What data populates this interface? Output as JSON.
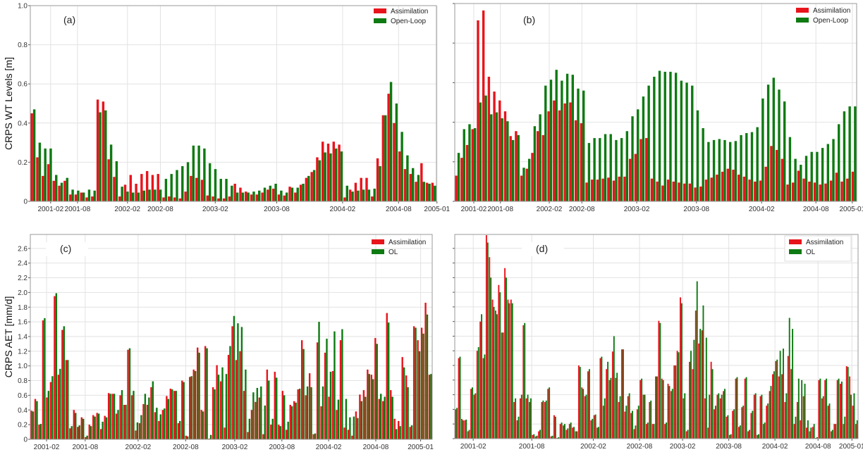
{
  "colors": {
    "assimilation": "#e8141c",
    "openloop": "#0e7a12",
    "grid": "#e2e2e2",
    "frame": "#9a9a9a"
  },
  "chart_data": [
    {
      "id": "a",
      "panel_label": "(a)",
      "type": "bar",
      "ylabel": "CRPS WT Levels [m]",
      "ylim": [
        0,
        1.0
      ],
      "yticks": [
        0,
        0.2,
        0.4,
        0.6,
        0.8,
        1.0
      ],
      "ytick_labels": [
        "0",
        "0.2",
        "0.4",
        "0.6",
        "0.8",
        "1.0"
      ],
      "xticks": [
        {
          "index": 3.2,
          "label": "2001-02"
        },
        {
          "index": 8.1,
          "label": "2001-08"
        },
        {
          "index": 17.2,
          "label": "2002-02"
        },
        {
          "index": 23.2,
          "label": "2002-08"
        },
        {
          "index": 33.2,
          "label": "2003-02"
        },
        {
          "index": 44.4,
          "label": "2003-08"
        },
        {
          "index": 56.4,
          "label": "2004-02"
        },
        {
          "index": 66.6,
          "label": "2004-08"
        },
        {
          "index": 73.6,
          "label": "2005-01"
        }
      ],
      "legend_position": "top-right",
      "series": [
        {
          "name": "Assimilation",
          "values": [
            0.45,
            0.225,
            0.13,
            0.19,
            0.105,
            0.08,
            0.105,
            0.035,
            0.035,
            0.045,
            0.02,
            0.025,
            0.52,
            0.51,
            0.215,
            0.125,
            0.025,
            0.085,
            0.135,
            0.09,
            0.14,
            0.155,
            0.135,
            0.14,
            0.02,
            0.025,
            0.02,
            0.015,
            0.05,
            0.13,
            0.12,
            0.11,
            0.03,
            0.025,
            0.015,
            0.015,
            0.025,
            0.09,
            0.07,
            0.05,
            0.035,
            0.035,
            0.045,
            0.06,
            0.065,
            0.035,
            0.03,
            0.075,
            0.045,
            0.085,
            0.12,
            0.15,
            0.225,
            0.305,
            0.295,
            0.305,
            0.29,
            0.02,
            0.06,
            0.095,
            0.12,
            0.12,
            0.025,
            0.22,
            0.44,
            0.55,
            0.4,
            0.255,
            0.165,
            0.14,
            0.1,
            0.195,
            0.095,
            0.095
          ]
        },
        {
          "name": "Open-Loop",
          "values": [
            0.47,
            0.3,
            0.27,
            0.27,
            0.135,
            0.095,
            0.12,
            0.06,
            0.055,
            0.045,
            0.06,
            0.055,
            0.455,
            0.465,
            0.29,
            0.205,
            0.075,
            0.05,
            0.045,
            0.045,
            0.055,
            0.06,
            0.06,
            0.06,
            0.115,
            0.14,
            0.16,
            0.18,
            0.2,
            0.285,
            0.285,
            0.27,
            0.195,
            0.165,
            0.115,
            0.115,
            0.08,
            0.045,
            0.045,
            0.045,
            0.05,
            0.055,
            0.07,
            0.08,
            0.09,
            0.055,
            0.045,
            0.07,
            0.07,
            0.09,
            0.13,
            0.16,
            0.21,
            0.25,
            0.245,
            0.27,
            0.255,
            0.08,
            0.05,
            0.055,
            0.06,
            0.06,
            0.065,
            0.18,
            0.44,
            0.61,
            0.5,
            0.355,
            0.235,
            0.17,
            0.135,
            0.1,
            0.09,
            0.08
          ]
        }
      ]
    },
    {
      "id": "b",
      "panel_label": "(b)",
      "type": "bar",
      "ylabel": "",
      "ylim": [
        0,
        1.0
      ],
      "yticks": [
        0,
        0.2,
        0.4,
        0.6,
        0.8,
        1.0
      ],
      "ytick_labels": [],
      "xticks": [
        {
          "index": 3.0,
          "label": "2001-02"
        },
        {
          "index": 7.9,
          "label": "2001-08"
        },
        {
          "index": 16.9,
          "label": "2002-02"
        },
        {
          "index": 22.9,
          "label": "2002-08"
        },
        {
          "index": 33.0,
          "label": "2003-02"
        },
        {
          "index": 44.0,
          "label": "2003-08"
        },
        {
          "index": 56.0,
          "label": "2004-02"
        },
        {
          "index": 66.0,
          "label": "2004-08"
        },
        {
          "index": 72.7,
          "label": "2005-01"
        }
      ],
      "legend_position": "top-right",
      "series": [
        {
          "name": "Assimilation",
          "values": [
            0.13,
            0.22,
            0.285,
            0.365,
            0.915,
            0.965,
            0.63,
            0.555,
            0.51,
            0.455,
            0.33,
            0.355,
            0.13,
            0.165,
            0.245,
            0.355,
            0.335,
            0.455,
            0.51,
            0.46,
            0.495,
            0.5,
            0.41,
            0.395,
            0.095,
            0.11,
            0.11,
            0.115,
            0.12,
            0.105,
            0.125,
            0.125,
            0.215,
            0.24,
            0.315,
            0.32,
            0.115,
            0.1,
            0.08,
            0.11,
            0.1,
            0.095,
            0.09,
            0.09,
            0.07,
            0.075,
            0.11,
            0.12,
            0.135,
            0.15,
            0.165,
            0.16,
            0.135,
            0.125,
            0.11,
            0.1,
            0.105,
            0.175,
            0.28,
            0.26,
            0.215,
            0.085,
            0.095,
            0.155,
            0.115,
            0.1,
            0.095,
            0.085,
            0.09,
            0.105,
            0.145,
            0.1,
            0.115,
            0.15
          ]
        },
        {
          "name": "Open-Loop",
          "values": [
            0.245,
            0.365,
            0.39,
            0.37,
            0.5,
            0.535,
            0.44,
            0.45,
            0.42,
            0.405,
            0.31,
            0.335,
            0.17,
            0.215,
            0.38,
            0.44,
            0.585,
            0.615,
            0.665,
            0.61,
            0.645,
            0.64,
            0.57,
            0.56,
            0.295,
            0.32,
            0.32,
            0.34,
            0.34,
            0.31,
            0.32,
            0.355,
            0.43,
            0.465,
            0.53,
            0.585,
            0.63,
            0.66,
            0.655,
            0.655,
            0.65,
            0.61,
            0.6,
            0.585,
            0.46,
            0.37,
            0.3,
            0.31,
            0.315,
            0.31,
            0.3,
            0.305,
            0.335,
            0.345,
            0.35,
            0.375,
            0.52,
            0.59,
            0.625,
            0.565,
            0.505,
            0.325,
            0.215,
            0.185,
            0.23,
            0.25,
            0.25,
            0.27,
            0.29,
            0.315,
            0.39,
            0.455,
            0.48,
            0.48
          ]
        }
      ]
    },
    {
      "id": "c",
      "panel_label": "(c)",
      "type": "bar",
      "ylabel": "CRPS AET [mm/d]",
      "ylim": [
        0,
        2.79
      ],
      "yticks": [
        0,
        0.2,
        0.4,
        0.6,
        0.8,
        1.0,
        1.2,
        1.4,
        1.6,
        1.8,
        2.0,
        2.2,
        2.4,
        2.6
      ],
      "ytick_labels": [
        "0",
        "0.2",
        "0.4",
        "0.6",
        "0.8",
        "1.0",
        "1.2",
        "1.4",
        "1.6",
        "1.8",
        "2.0",
        "2.2",
        "2.4",
        "2.6"
      ],
      "xticks": [
        {
          "index": 3.7,
          "label": "2001-02"
        },
        {
          "index": 13.7,
          "label": "2001-08"
        },
        {
          "index": 27.4,
          "label": "2002-02"
        },
        {
          "index": 39.7,
          "label": "2002-08"
        },
        {
          "index": 52.4,
          "label": "2003-02"
        },
        {
          "index": 64.6,
          "label": "2003-08"
        },
        {
          "index": 76.7,
          "label": "2004-02"
        },
        {
          "index": 88.9,
          "label": "2004-08"
        },
        {
          "index": 100.5,
          "label": "2005-01"
        }
      ],
      "legend_position": "top-right",
      "series": [
        {
          "name": "Assimilation",
          "values": [
            0.39,
            0.55,
            0.2,
            1.62,
            0.57,
            0.78,
            1.95,
            0.88,
            1.49,
            1.08,
            0.15,
            0.4,
            0.17,
            0.3,
            0.03,
            0.2,
            0.33,
            0.36,
            0.14,
            0.32,
            0.63,
            0.62,
            0.35,
            0.6,
            0.47,
            1.22,
            0.6,
            0.12,
            0.22,
            0.48,
            0.47,
            0.71,
            0.37,
            0.25,
            0.4,
            0.59,
            0.69,
            0.66,
            0.22,
            0.8,
            0.05,
            0.85,
            0.95,
            1.25,
            0.4,
            1.27,
            0.01,
            0.71,
            1.01,
            0.79,
            0.16,
            1.15,
            1.54,
            1.08,
            1.2,
            0.66,
            0.1,
            0.4,
            0.51,
            0.57,
            0.07,
            0.95,
            0.2,
            0.92,
            0.2,
            0.66,
            0.13,
            0.47,
            0.52,
            0.68,
            1.35,
            0.6,
            0.9,
            0.07,
            1.32,
            0.45,
            1.18,
            0.58,
            0.93,
            0.4,
            1.35,
            0.16,
            0.13,
            0.05,
            0.38,
            0.61,
            0.67,
            0.95,
            0.88,
            1.38,
            0.55,
            0.52,
            1.72,
            0.67,
            0.28,
            0.25,
            1.12,
            0.87,
            0.17,
            1.54,
            1.35,
            1.52,
            1.86,
            0.88
          ]
        },
        {
          "name": "OL",
          "values": [
            0.38,
            0.52,
            0.21,
            1.65,
            0.66,
            0.86,
            1.99,
            0.96,
            1.54,
            1.08,
            0.18,
            0.36,
            0.19,
            0.28,
            0.05,
            0.18,
            0.31,
            0.35,
            0.24,
            0.3,
            0.62,
            0.62,
            0.4,
            0.67,
            0.47,
            1.24,
            0.66,
            0.23,
            0.33,
            0.62,
            0.57,
            0.79,
            0.43,
            0.34,
            0.42,
            0.55,
            0.68,
            0.66,
            0.25,
            0.78,
            0.04,
            0.86,
            0.93,
            1.18,
            0.38,
            1.24,
            0.06,
            0.68,
            0.88,
            0.98,
            0.89,
            1.27,
            1.68,
            1.58,
            1.53,
            0.95,
            0.28,
            0.64,
            0.7,
            0.72,
            0.46,
            0.8,
            0.28,
            0.84,
            0.18,
            0.6,
            0.24,
            0.45,
            0.5,
            0.69,
            1.23,
            0.72,
            0.71,
            0.08,
            1.6,
            0.72,
            1.37,
            0.92,
            1.47,
            0.54,
            1.5,
            0.55,
            0.3,
            0.31,
            0.29,
            0.52,
            0.58,
            0.89,
            0.82,
            1.3,
            0.62,
            0.58,
            1.59,
            0.58,
            0.14,
            0.18,
            0.98,
            0.71,
            0.19,
            1.52,
            1.2,
            1.44,
            1.7,
            0.89
          ]
        }
      ]
    },
    {
      "id": "d",
      "panel_label": "(d)",
      "type": "bar",
      "ylabel": "",
      "ylim": [
        0,
        2.79
      ],
      "yticks": [
        0,
        0.2,
        0.4,
        0.6,
        0.8,
        1.0,
        1.2,
        1.4,
        1.6,
        1.8,
        2.0,
        2.2,
        2.4,
        2.6
      ],
      "ytick_labels": [],
      "xticks": [
        {
          "index": 5.5,
          "label": "2001-02"
        },
        {
          "index": 24.5,
          "label": "2001-08"
        },
        {
          "index": 44.5,
          "label": "2002-02"
        },
        {
          "index": 59.5,
          "label": "2002-08"
        },
        {
          "index": 73.5,
          "label": "2003-02"
        },
        {
          "index": 88.5,
          "label": "2003-08"
        },
        {
          "index": 103.5,
          "label": "2004-02"
        },
        {
          "index": 117.5,
          "label": "2004-08"
        },
        {
          "index": 128.5,
          "label": "2005-01"
        }
      ],
      "legend_position": "top-right",
      "series": [
        {
          "name": "Assimilation",
          "values": [
            0.4,
            1.1,
            0.27,
            0.25,
            0.1,
            0.68,
            0.6,
            1.2,
            1.6,
            1.1,
            2.78,
            2.48,
            1.9,
            1.75,
            2.1,
            1.45,
            2.33,
            1.9,
            1.9,
            0.5,
            0.25,
            0.55,
            1.55,
            0.55,
            0.5,
            0.05,
            0.03,
            0.1,
            0.5,
            0.5,
            0.68,
            0.03,
            0.32,
            0.01,
            0.2,
            0.18,
            0.12,
            0.2,
            0.15,
            0.1,
            1.0,
            0.7,
            0.58,
            0.92,
            0.25,
            0.32,
            0.15,
            1.1,
            0.45,
            0.95,
            0.8,
            1.19,
            0.83,
            0.5,
            1.22,
            0.37,
            0.58,
            0.35,
            0.13,
            0.4,
            0.8,
            0.6,
            0.2,
            0.5,
            0.2,
            0.85,
            1.61,
            0.82,
            0.2,
            0.75,
            0.65,
            1.0,
            1.2,
            1.93,
            0.55,
            0.1,
            1.05,
            0.95,
            1.75,
            1.3,
            1.48,
            0.55,
            0.15,
            1.05,
            0.4,
            0.6,
            0.55,
            0.65,
            0.3,
            0.05,
            0.38,
            0.82,
            0.16,
            0.43,
            0.82,
            0.1,
            0.35,
            0.6,
            0.05,
            0.58,
            0.2,
            0.45,
            0.65,
            0.88,
            1.06,
            0.85,
            0.88,
            0.5,
            1.13,
            0.95,
            0.2,
            0.5,
            0.25,
            0.58,
            0.15,
            0.1,
            0.16,
            0.01,
            0.8,
            0.55,
            0.8,
            0.45,
            0.1,
            0.2,
            0.8,
            0.75,
            0.2,
            0.99,
            0.85,
            0.45,
            0.2
          ]
        },
        {
          "name": "OL",
          "values": [
            0.42,
            1.12,
            0.25,
            0.26,
            0.12,
            0.7,
            0.62,
            1.25,
            1.7,
            1.15,
            2.68,
            2.2,
            1.8,
            1.7,
            2.0,
            1.45,
            2.2,
            1.85,
            1.85,
            0.55,
            0.3,
            0.6,
            1.58,
            0.6,
            0.55,
            0.06,
            0.04,
            0.12,
            0.52,
            0.52,
            0.7,
            0.04,
            0.3,
            0.02,
            0.22,
            0.2,
            0.14,
            0.22,
            0.16,
            0.1,
            0.98,
            0.68,
            0.6,
            0.95,
            0.27,
            0.33,
            0.16,
            1.12,
            0.55,
            1.05,
            0.83,
            1.4,
            0.9,
            0.58,
            1.22,
            0.45,
            0.62,
            0.38,
            0.18,
            0.45,
            0.82,
            0.6,
            0.22,
            0.52,
            0.2,
            0.85,
            1.58,
            0.8,
            0.22,
            0.72,
            0.68,
            1.0,
            1.18,
            1.85,
            0.62,
            0.12,
            1.2,
            1.35,
            2.15,
            1.5,
            1.82,
            1.38,
            0.6,
            0.95,
            0.45,
            0.62,
            0.6,
            0.68,
            0.32,
            0.06,
            0.4,
            0.84,
            0.18,
            0.45,
            0.84,
            0.12,
            0.38,
            0.62,
            0.06,
            0.6,
            0.22,
            0.48,
            0.72,
            0.92,
            1.08,
            1.2,
            1.23,
            0.62,
            1.65,
            1.5,
            0.3,
            0.82,
            0.8,
            0.75,
            0.25,
            0.15,
            0.2,
            0.02,
            0.82,
            0.58,
            0.82,
            0.48,
            0.12,
            0.2,
            0.82,
            0.78,
            0.3,
            0.98,
            0.6,
            0.62,
            0.25
          ]
        }
      ]
    }
  ]
}
